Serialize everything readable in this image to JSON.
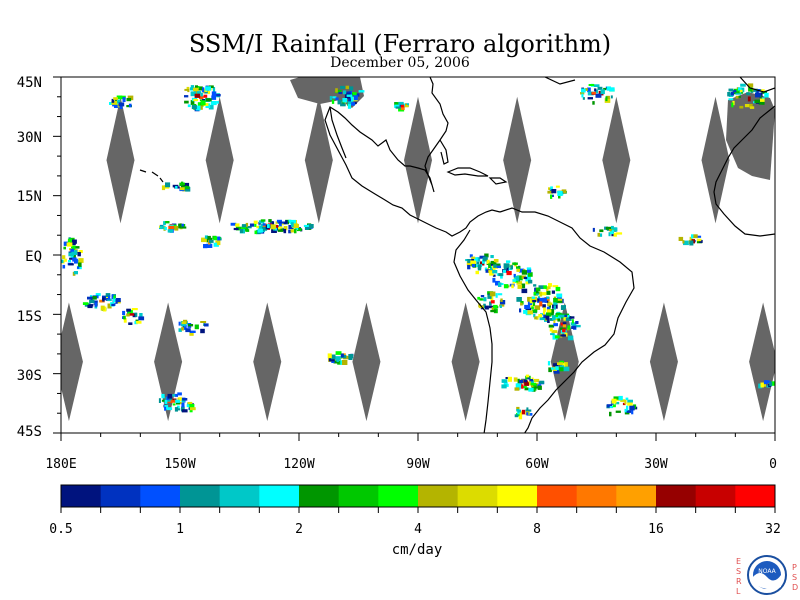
{
  "title": "SSM/I Rainfall (Ferraro algorithm)",
  "date": "December 05, 2006",
  "map": {
    "lon_range": [
      -180,
      0
    ],
    "lat_range": [
      -45,
      45
    ],
    "lat_ticks": [
      "45N",
      "30N",
      "15N",
      "EQ",
      "15S",
      "30S",
      "45S"
    ],
    "lon_ticks": [
      "180E",
      "150W",
      "120W",
      "90W",
      "60W",
      "30W",
      "0"
    ],
    "swath_gap_color": "#666666",
    "land_outline_color": "#000000",
    "swath_gaps_center_lon": {
      "north": [
        -165,
        -140,
        -115,
        -90,
        -65,
        -40,
        -15
      ],
      "south": [
        -178,
        -153,
        -128,
        -103,
        -78,
        -53,
        -28,
        -3
      ]
    }
  },
  "colorbar": {
    "units": "cm/day",
    "tick_labels": [
      "0.5",
      "1",
      "2",
      "4",
      "8",
      "16",
      "32"
    ],
    "colors": [
      "#00137e",
      "#0032c0",
      "#0050ff",
      "#009595",
      "#00c8c8",
      "#00ffff",
      "#009600",
      "#00c800",
      "#00ff00",
      "#b4b400",
      "#dcdc00",
      "#ffff00",
      "#ff5000",
      "#ff7800",
      "#ffa000",
      "#960000",
      "#c80000",
      "#ff0000"
    ]
  },
  "logo": {
    "left_letters": [
      "E",
      "S",
      "R",
      "L"
    ],
    "right_letters": [
      "P",
      "S",
      "D"
    ],
    "emblem_text": "NOAA"
  }
}
